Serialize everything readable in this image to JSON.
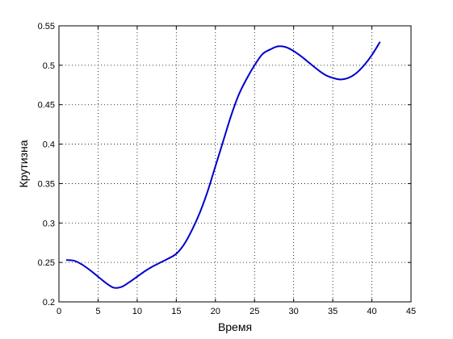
{
  "chart_data": {
    "type": "line",
    "title": "",
    "xlabel": "Время",
    "ylabel": "Крутизна",
    "xlim": [
      0,
      45
    ],
    "ylim": [
      0.2,
      0.55
    ],
    "xticks": [
      0,
      5,
      10,
      15,
      20,
      25,
      30,
      35,
      40,
      45
    ],
    "yticks": [
      0.2,
      0.25,
      0.3,
      0.35,
      0.4,
      0.45,
      0.5,
      0.55
    ],
    "xtick_labels": [
      "0",
      "5",
      "10",
      "15",
      "20",
      "25",
      "30",
      "35",
      "40",
      "45"
    ],
    "ytick_labels": [
      "0.2",
      "0.25",
      "0.3",
      "0.35",
      "0.4",
      "0.45",
      "0.5",
      "0.55"
    ],
    "grid": true,
    "series": [
      {
        "color": "#0000cc",
        "x": [
          1,
          2,
          3,
          4,
          5,
          6,
          7,
          8,
          9,
          10,
          11,
          12,
          13,
          14,
          15,
          16,
          17,
          18,
          19,
          20,
          21,
          22,
          23,
          24,
          25,
          26,
          27,
          28,
          29,
          30,
          31,
          32,
          33,
          34,
          35,
          36,
          37,
          38,
          39,
          40,
          41
        ],
        "y": [
          0.253,
          0.252,
          0.247,
          0.24,
          0.232,
          0.224,
          0.218,
          0.219,
          0.225,
          0.232,
          0.239,
          0.245,
          0.25,
          0.255,
          0.261,
          0.273,
          0.291,
          0.313,
          0.34,
          0.372,
          0.404,
          0.436,
          0.463,
          0.483,
          0.5,
          0.514,
          0.52,
          0.524,
          0.523,
          0.518,
          0.511,
          0.503,
          0.495,
          0.488,
          0.484,
          0.482,
          0.484,
          0.49,
          0.5,
          0.513,
          0.529
        ]
      }
    ]
  }
}
